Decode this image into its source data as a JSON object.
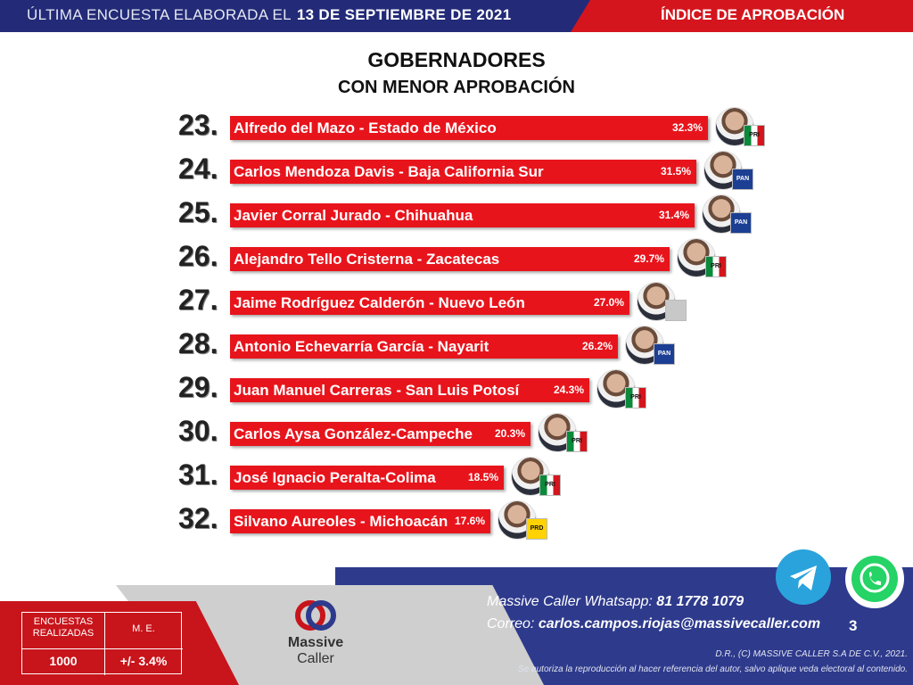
{
  "header": {
    "left_text": "ÚLTIMA ENCUESTA ELABORADA EL",
    "date": "13 DE SEPTIEMBRE DE 2021",
    "right_text": "ÍNDICE DE APROBACIÓN"
  },
  "title_line1": "GOBERNADORES",
  "title_line2": "CON MENOR APROBACIÓN",
  "chart_data": {
    "type": "bar",
    "orientation": "horizontal",
    "title": "GOBERNADORES CON MENOR APROBACIÓN",
    "unit": "%",
    "ranks": [
      "23.",
      "24.",
      "25.",
      "26.",
      "27.",
      "28.",
      "29.",
      "30.",
      "31.",
      "32."
    ],
    "categories": [
      "Alfredo del Mazo - Estado de México",
      "Carlos Mendoza Davis - Baja California Sur",
      "Javier Corral Jurado - Chihuahua",
      "Alejandro Tello Cristerna - Zacatecas",
      "Jaime Rodríguez Calderón - Nuevo León",
      "Antonio Echevarría García - Nayarit",
      "Juan Manuel Carreras - San Luis Potosí",
      "Carlos Aysa González-Campeche",
      "José Ignacio Peralta-Colima",
      "Silvano Aureoles - Michoacán"
    ],
    "values": [
      32.3,
      31.5,
      31.4,
      29.7,
      27.0,
      26.2,
      24.3,
      20.3,
      18.5,
      17.6
    ],
    "value_labels": [
      "32.3%",
      "31.5%",
      "31.4%",
      "29.7%",
      "27.0%",
      "26.2%",
      "24.3%",
      "20.3%",
      "18.5%",
      "17.6%"
    ],
    "parties": [
      "PRI",
      "PAN",
      "PAN",
      "PRI",
      "IND",
      "PAN",
      "PRI",
      "PRI",
      "PRI",
      "PRD"
    ],
    "bar_color": "#e8141c",
    "grid": false
  },
  "party_style": {
    "PRI": {
      "icon": "pri-logo-icon",
      "text": "PRI"
    },
    "PAN": {
      "icon": "pan-logo-icon",
      "text": "PAN"
    },
    "PRD": {
      "icon": "prd-logo-icon",
      "text": "PRD"
    },
    "IND": {
      "icon": "independent-icon",
      "text": ""
    }
  },
  "stats": {
    "surveys_label": "ENCUESTAS REALIZADAS",
    "surveys_value": "1000",
    "margin_label": "M. E.",
    "margin_value": "+/- 3.4%"
  },
  "brand": {
    "line1": "Massive",
    "line2": "Caller"
  },
  "contact": {
    "whatsapp_label": "Massive Caller Whatsapp:",
    "whatsapp_value": "81 1778 1079",
    "email_label": "Correo:",
    "email_value": "carlos.campos.riojas@massivecaller.com",
    "page_number": "3"
  },
  "legal": {
    "line1": "D.R., (C) MASSIVE CALLER S.A DE C.V., 2021.",
    "line2": "Se autoriza la reproducción al hacer referencia del autor, salvo aplique veda electoral al contenido."
  },
  "colors": {
    "navy": "#232b78",
    "red": "#d4151d",
    "telegram": "#2aa3dc",
    "whatsapp": "#25d366"
  },
  "icons": {
    "telegram": "telegram-icon",
    "whatsapp": "whatsapp-icon",
    "logo": "massive-caller-logo-icon"
  }
}
